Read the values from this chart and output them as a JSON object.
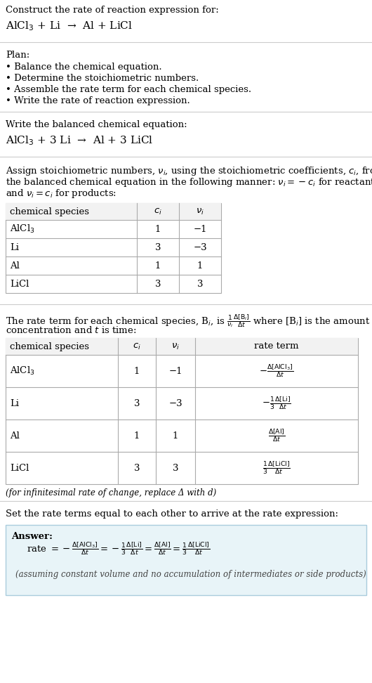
{
  "bg_color": "#ffffff",
  "text_color": "#000000",
  "table_border_color": "#aaaaaa",
  "answer_box_color": "#e8f4f8",
  "answer_box_border": "#aaccdd",
  "section1_title": "Construct the rate of reaction expression for:",
  "section1_equation": "AlCl$_3$ + Li  →  Al + LiCl",
  "section2_title": "Plan:",
  "section2_bullets": [
    "• Balance the chemical equation.",
    "• Determine the stoichiometric numbers.",
    "• Assemble the rate term for each chemical species.",
    "• Write the rate of reaction expression."
  ],
  "section3_title": "Write the balanced chemical equation:",
  "section3_equation": "AlCl$_3$ + 3 Li  →  Al + 3 LiCl",
  "section4_intro_lines": [
    "Assign stoichiometric numbers, $\\nu_i$, using the stoichiometric coefficients, $c_i$, from",
    "the balanced chemical equation in the following manner: $\\nu_i = -c_i$ for reactants",
    "and $\\nu_i = c_i$ for products:"
  ],
  "table1_headers": [
    "chemical species",
    "$c_i$",
    "$\\nu_i$"
  ],
  "table1_rows": [
    [
      "AlCl$_3$",
      "1",
      "−1"
    ],
    [
      "Li",
      "3",
      "−3"
    ],
    [
      "Al",
      "1",
      "1"
    ],
    [
      "LiCl",
      "3",
      "3"
    ]
  ],
  "section5_intro_part1": "The rate term for each chemical species, B$_i$, is $\\frac{1}{\\nu_i}\\frac{\\Delta[\\mathrm{B}_i]}{\\Delta t}$ where [B$_i$] is the amount",
  "section5_intro_part2": "concentration and $t$ is time:",
  "table2_headers": [
    "chemical species",
    "$c_i$",
    "$\\nu_i$",
    "rate term"
  ],
  "table2_rows": [
    [
      "AlCl$_3$",
      "1",
      "−1",
      "$-\\frac{\\Delta[\\mathrm{AlCl_3}]}{\\Delta t}$"
    ],
    [
      "Li",
      "3",
      "−3",
      "$-\\frac{1}{3}\\frac{\\Delta[\\mathrm{Li}]}{\\Delta t}$"
    ],
    [
      "Al",
      "1",
      "1",
      "$\\frac{\\Delta[\\mathrm{Al}]}{\\Delta t}$"
    ],
    [
      "LiCl",
      "3",
      "3",
      "$\\frac{1}{3}\\frac{\\Delta[\\mathrm{LiCl}]}{\\Delta t}$"
    ]
  ],
  "section5_footnote": "(for infinitesimal rate of change, replace Δ with d)",
  "section6_title": "Set the rate terms equal to each other to arrive at the rate expression:",
  "answer_label": "Answer:",
  "answer_rate_expr": "rate $= -\\frac{\\Delta[\\mathrm{AlCl_3}]}{\\Delta t} = -\\frac{1}{3}\\frac{\\Delta[\\mathrm{Li}]}{\\Delta t} = \\frac{\\Delta[\\mathrm{Al}]}{\\Delta t} = \\frac{1}{3}\\frac{\\Delta[\\mathrm{LiCl}]}{\\Delta t}$",
  "answer_footnote": "(assuming constant volume and no accumulation of intermediates or side products)"
}
